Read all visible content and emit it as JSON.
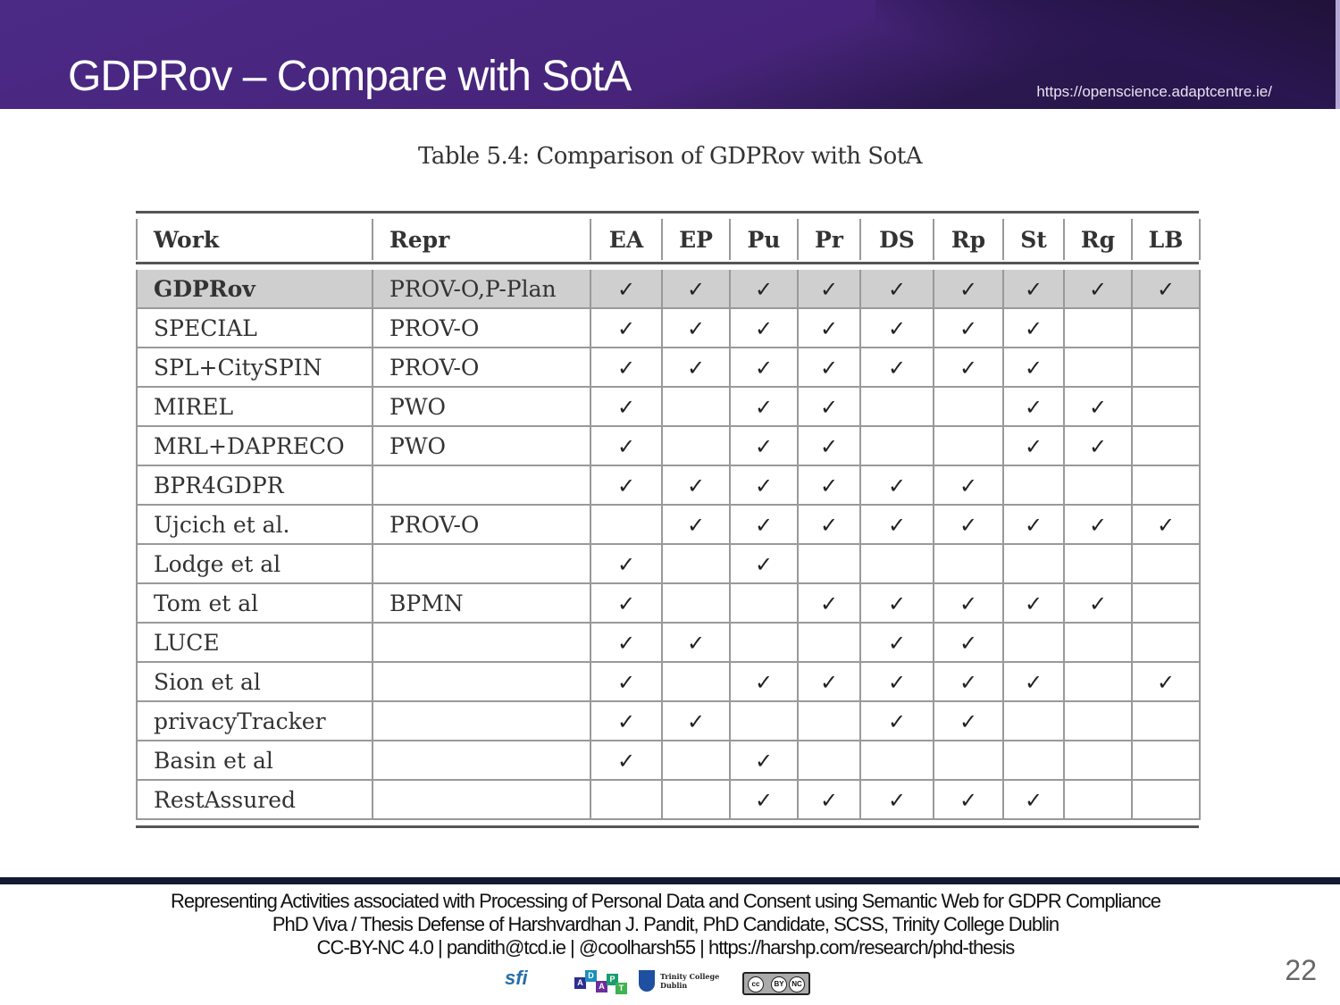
{
  "header": {
    "title": "GDPRov – Compare with SotA",
    "url": "https://openscience.adaptcentre.ie/"
  },
  "table": {
    "caption": "Table 5.4: Comparison of GDPRov with SotA",
    "columns": [
      "Work",
      "Repr",
      "EA",
      "EP",
      "Pu",
      "Pr",
      "DS",
      "Rp",
      "St",
      "Rg",
      "LB"
    ],
    "check_symbol": "✓",
    "rows": [
      {
        "work": "GDPRov",
        "repr": "PROV-O,P-Plan",
        "marks": [
          1,
          1,
          1,
          1,
          1,
          1,
          1,
          1,
          1
        ],
        "highlight": true
      },
      {
        "work": "SPECIAL",
        "repr": "PROV-O",
        "marks": [
          1,
          1,
          1,
          1,
          1,
          1,
          1,
          0,
          0
        ]
      },
      {
        "work": "SPL+CitySPIN",
        "repr": "PROV-O",
        "marks": [
          1,
          1,
          1,
          1,
          1,
          1,
          1,
          0,
          0
        ]
      },
      {
        "work": "MIREL",
        "repr": "PWO",
        "marks": [
          1,
          0,
          1,
          1,
          0,
          0,
          1,
          1,
          0
        ]
      },
      {
        "work": "MRL+DAPRECO",
        "repr": "PWO",
        "marks": [
          1,
          0,
          1,
          1,
          0,
          0,
          1,
          1,
          0
        ]
      },
      {
        "work": "BPR4GDPR",
        "repr": "",
        "marks": [
          1,
          1,
          1,
          1,
          1,
          1,
          0,
          0,
          0
        ]
      },
      {
        "work": "Ujcich et al.",
        "repr": "PROV-O",
        "marks": [
          0,
          1,
          1,
          1,
          1,
          1,
          1,
          1,
          1
        ]
      },
      {
        "work": "Lodge et al",
        "repr": "",
        "marks": [
          1,
          0,
          1,
          0,
          0,
          0,
          0,
          0,
          0
        ]
      },
      {
        "work": "Tom et al",
        "repr": "BPMN",
        "marks": [
          1,
          0,
          0,
          1,
          1,
          1,
          1,
          1,
          0
        ]
      },
      {
        "work": "LUCE",
        "repr": "",
        "marks": [
          1,
          1,
          0,
          0,
          1,
          1,
          0,
          0,
          0
        ]
      },
      {
        "work": "Sion et al",
        "repr": "",
        "marks": [
          1,
          0,
          1,
          1,
          1,
          1,
          1,
          0,
          1
        ]
      },
      {
        "work": "privacyTracker",
        "repr": "",
        "marks": [
          1,
          1,
          0,
          0,
          1,
          1,
          0,
          0,
          0
        ]
      },
      {
        "work": "Basin et al",
        "repr": "",
        "marks": [
          1,
          0,
          1,
          0,
          0,
          0,
          0,
          0,
          0
        ]
      },
      {
        "work": "RestAssured",
        "repr": "",
        "marks": [
          0,
          0,
          1,
          1,
          1,
          1,
          1,
          0,
          0
        ]
      }
    ]
  },
  "footer": {
    "line1": "Representing Activities associated with Processing of Personal Data and Consent using Semantic Web for GDPR Compliance",
    "line2": "PhD Viva / Thesis Defense of Harshvardhan J. Pandit, PhD Candidate, SCSS, Trinity College Dublin",
    "line3": "CC-BY-NC 4.0 | pandith@tcd.ie | @coolharsh55 | https://harshp.com/research/phd-thesis",
    "page_number": "22",
    "logos": {
      "sfi": "sfi",
      "adapt_letters": [
        "A",
        "D",
        "A",
        "P",
        "T"
      ],
      "tcd_name": "Trinity College Dublin",
      "cc_badge": [
        "cc",
        "BY",
        "NC"
      ]
    }
  },
  "colors": {
    "header_purple": "#4b2a86",
    "header_dark": "#221442",
    "highlight_row": "#cfcfcf",
    "footer_rule": "#141a33"
  }
}
